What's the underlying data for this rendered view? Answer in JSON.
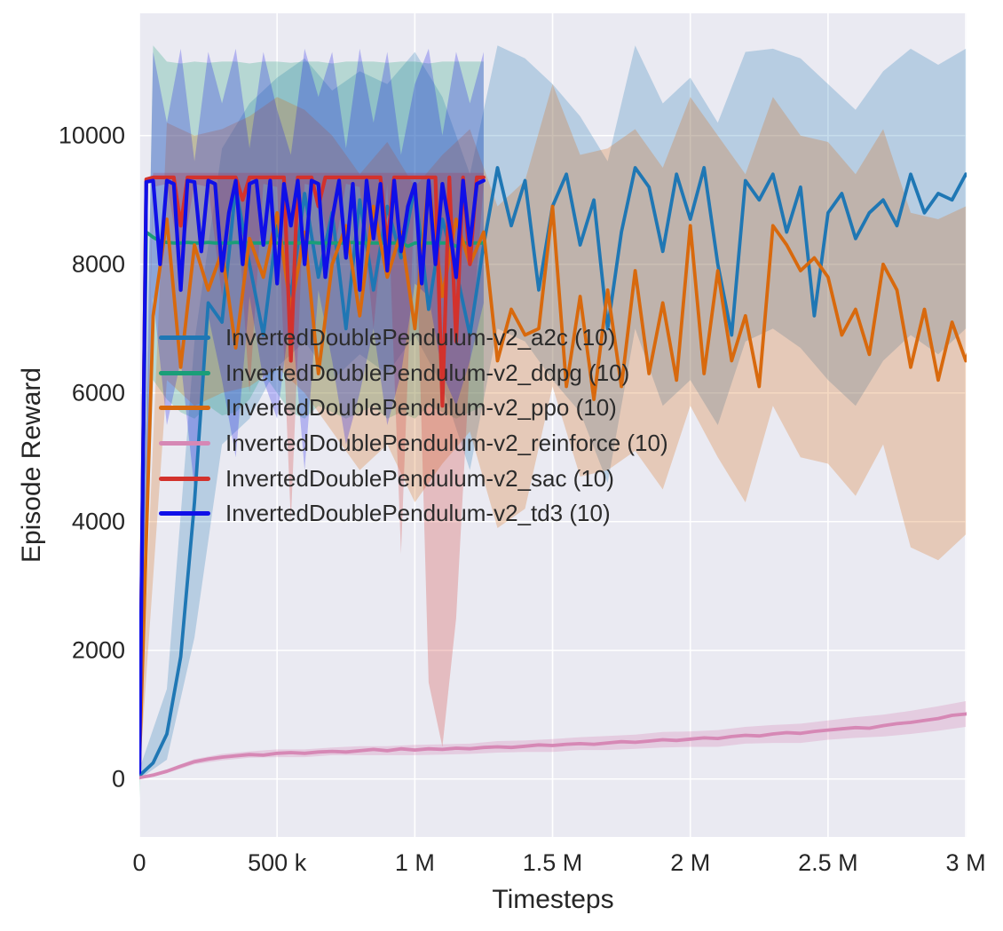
{
  "chart_data": {
    "type": "line",
    "title": "",
    "xlabel": "Timesteps",
    "ylabel": "Episode Reward",
    "xlim": [
      0,
      3003000
    ],
    "ylim": [
      -900,
      11900
    ],
    "grid": true,
    "plot_bg": "#eaeaf2",
    "grid_color": "#ffffff",
    "text_color": "#262626",
    "legend_position": "inside-upper-left",
    "x_ticks": [
      {
        "v": 0,
        "label": "0"
      },
      {
        "v": 500000,
        "label": "500 k"
      },
      {
        "v": 1000000,
        "label": "1 M"
      },
      {
        "v": 1500000,
        "label": "1.5 M"
      },
      {
        "v": 2000000,
        "label": "2 M"
      },
      {
        "v": 2500000,
        "label": "2.5 M"
      },
      {
        "v": 3000000,
        "label": "3 M"
      }
    ],
    "y_ticks": [
      {
        "v": 0,
        "label": "0"
      },
      {
        "v": 2000,
        "label": "2000"
      },
      {
        "v": 4000,
        "label": "4000"
      },
      {
        "v": 6000,
        "label": "6000"
      },
      {
        "v": 8000,
        "label": "8000"
      },
      {
        "v": 10000,
        "label": "10000"
      }
    ],
    "series": [
      {
        "id": "a2c",
        "name": "InvertedDoublePendulum-v2_a2c (10)",
        "color": "#1f77b4",
        "line_width": 3.8,
        "band_opacity": 0.25,
        "x0": 0,
        "dx": 50000,
        "y": [
          50,
          250,
          700,
          1900,
          4300,
          7400,
          7100,
          9200,
          8000,
          6900,
          8600,
          7500,
          9100,
          7800,
          8800,
          7000,
          9000,
          7600,
          8900,
          8100,
          9200,
          7300,
          8700,
          7900,
          6900,
          8300,
          9500,
          8600,
          9300,
          7600,
          8900,
          9400,
          8300,
          9000,
          7000,
          8500,
          9500,
          9200,
          8200,
          9400,
          8700,
          9500,
          8000,
          6900,
          9300,
          9000,
          9400,
          8500,
          9200,
          7200,
          8800,
          9100,
          8400,
          8800,
          9000,
          8600,
          9400,
          8800,
          9100,
          9000,
          9400,
          9200
        ],
        "band": {
          "x0": 0,
          "dx": 100000,
          "lo": [
            0,
            300,
            2200,
            5200,
            5600,
            6400,
            6800,
            6200,
            6600,
            6300,
            6900,
            6100,
            4800,
            7000,
            6800,
            6200,
            5700,
            4600,
            7000,
            5800,
            6200,
            5500,
            6800,
            7000,
            6700,
            6200,
            5800,
            6500,
            6900,
            6600,
            7000
          ],
          "hi": [
            150,
            1400,
            6800,
            9800,
            10500,
            10900,
            11200,
            10700,
            11000,
            10800,
            11300,
            10600,
            9400,
            11400,
            11200,
            10800,
            10300,
            9600,
            11400,
            10500,
            10900,
            10200,
            11300,
            11350,
            11200,
            10800,
            10400,
            11000,
            11350,
            11100,
            11350
          ]
        }
      },
      {
        "id": "ddpg",
        "name": "InvertedDoublePendulum-v2_ddpg (10)",
        "color": "#1a9e78",
        "line_width": 3.8,
        "band_opacity": 0.25,
        "x0": 0,
        "dx": 25000,
        "y": [
          120,
          8500,
          8420,
          8360,
          8340,
          8330,
          8330,
          8340,
          8330,
          8330,
          8340,
          8330,
          8330,
          8330,
          8340,
          8330,
          8330,
          8330,
          8330,
          8340,
          8330,
          8330,
          8330,
          8330,
          8330,
          8340,
          8330,
          8330,
          8330,
          8330,
          8330,
          8340,
          8330,
          8330,
          8330,
          8330,
          8330,
          8330,
          8340,
          8280,
          8330,
          8330,
          8330,
          8330,
          8330,
          8330,
          8280,
          8330,
          8330,
          8330,
          8330
        ],
        "band": {
          "x0": 0,
          "dx": 50000,
          "lo": [
            -300,
            6200,
            5900,
            5700,
            5600,
            5800,
            5650,
            5700,
            5900,
            6300,
            6000,
            5700,
            5600,
            5800,
            5700,
            5600,
            5700,
            5800,
            5600,
            5700,
            5600,
            5800,
            5700,
            5600,
            5700,
            5800
          ],
          "hi": [
            300,
            11400,
            11150,
            11120,
            11150,
            11130,
            11150,
            11150,
            11120,
            11150,
            11150,
            11130,
            11150,
            11150,
            11120,
            11150,
            11150,
            11150,
            11130,
            11150,
            11150,
            11120,
            11150,
            11150,
            11150,
            11150
          ]
        }
      },
      {
        "id": "ppo",
        "name": "InvertedDoublePendulum-v2_ppo (10)",
        "color": "#d8690d",
        "line_width": 3.8,
        "band_opacity": 0.25,
        "x0": 0,
        "dx": 50000,
        "y": [
          150,
          7200,
          8700,
          6400,
          8300,
          7600,
          8200,
          6700,
          8400,
          7800,
          8800,
          7300,
          8500,
          6300,
          8000,
          8600,
          7200,
          8900,
          7800,
          8500,
          7000,
          9300,
          7500,
          8700,
          8000,
          8500,
          6500,
          7300,
          6900,
          7000,
          8900,
          6100,
          7500,
          5900,
          7600,
          6100,
          7900,
          6300,
          7400,
          6200,
          8600,
          6300,
          7900,
          6500,
          7200,
          6100,
          8600,
          8300,
          7900,
          8100,
          7800,
          6900,
          7300,
          6600,
          8000,
          7600,
          6400,
          7300,
          6200,
          7100,
          6500,
          7200
        ],
        "band": {
          "x0": 0,
          "dx": 100000,
          "lo": [
            50,
            6200,
            5800,
            6000,
            6100,
            6400,
            6000,
            5400,
            4800,
            5200,
            4300,
            4900,
            5400,
            3900,
            4200,
            6100,
            4700,
            4800,
            5100,
            4500,
            5800,
            5000,
            4300,
            5800,
            5000,
            4900,
            4400,
            5200,
            3600,
            3400,
            3800
          ],
          "hi": [
            300,
            10200,
            10000,
            10100,
            10300,
            10600,
            10400,
            10000,
            9400,
            9900,
            9200,
            9700,
            10100,
            8900,
            9300,
            10800,
            9700,
            9800,
            10100,
            9500,
            10600,
            10000,
            9400,
            10600,
            10000,
            9900,
            9400,
            10100,
            8800,
            8700,
            8900
          ]
        }
      },
      {
        "id": "reinforce",
        "name": "InvertedDoublePendulum-v2_reinforce (10)",
        "color": "#d688b5",
        "line_width": 3.8,
        "band_opacity": 0.3,
        "x0": 0,
        "dx": 50000,
        "y": [
          20,
          60,
          120,
          200,
          270,
          310,
          340,
          360,
          380,
          370,
          400,
          410,
          400,
          420,
          430,
          420,
          440,
          460,
          440,
          470,
          450,
          470,
          460,
          480,
          470,
          490,
          500,
          490,
          510,
          530,
          520,
          540,
          550,
          540,
          560,
          580,
          570,
          590,
          610,
          600,
          620,
          640,
          630,
          660,
          680,
          670,
          700,
          720,
          710,
          740,
          760,
          780,
          800,
          790,
          830,
          860,
          880,
          910,
          940,
          990,
          1010,
          1050
        ],
        "band": {
          "x0": 0,
          "dx": 100000,
          "lo": [
            5,
            90,
            230,
            290,
            330,
            340,
            340,
            370,
            370,
            370,
            370,
            380,
            390,
            410,
            420,
            420,
            450,
            450,
            470,
            490,
            500,
            500,
            550,
            560,
            560,
            610,
            640,
            660,
            700,
            750,
            810
          ],
          "hi": [
            35,
            150,
            310,
            390,
            430,
            460,
            460,
            490,
            510,
            510,
            530,
            540,
            550,
            590,
            600,
            620,
            650,
            670,
            690,
            730,
            740,
            760,
            810,
            840,
            860,
            910,
            960,
            1000,
            1060,
            1130,
            1210
          ]
        }
      },
      {
        "id": "sac",
        "name": "InvertedDoublePendulum-v2_sac (10)",
        "color": "#d3322c",
        "line_width": 4.2,
        "band_opacity": 0.25,
        "x0": 0,
        "dx": 25000,
        "y": [
          150,
          9320,
          9350,
          9350,
          9350,
          9350,
          8600,
          9350,
          9350,
          9350,
          9350,
          9350,
          9350,
          9350,
          9350,
          9000,
          9350,
          9350,
          9350,
          9350,
          9350,
          9350,
          6500,
          9350,
          9350,
          9350,
          8900,
          9350,
          9350,
          9350,
          9350,
          9350,
          9350,
          9350,
          9350,
          9350,
          8300,
          9350,
          9350,
          9350,
          9350,
          9350,
          9350,
          9350,
          5800,
          9350,
          6800,
          9350,
          8000,
          9350,
          9350
        ],
        "band": {
          "x0": 0,
          "dx": 50000,
          "lo": [
            50,
            9200,
            9250,
            8000,
            9250,
            9200,
            7500,
            9250,
            6000,
            9250,
            9200,
            4000,
            9250,
            9200,
            8000,
            9250,
            9200,
            7000,
            9250,
            3500,
            9200,
            1500,
            500,
            2500,
            6500,
            9250
          ],
          "hi": [
            300,
            9420,
            9420,
            9420,
            9420,
            9420,
            9420,
            9420,
            9420,
            9420,
            9420,
            9420,
            9420,
            9420,
            9420,
            9420,
            9420,
            9420,
            9420,
            9420,
            9420,
            9420,
            9420,
            9420,
            9420,
            9420
          ]
        }
      },
      {
        "id": "td3",
        "name": "InvertedDoublePendulum-v2_td3 (10)",
        "color": "#0f0fe8",
        "line_width": 4.2,
        "band_opacity": 0.25,
        "x0": 0,
        "dx": 25000,
        "y": [
          100,
          9280,
          9300,
          8000,
          9300,
          9250,
          7600,
          9300,
          9280,
          8200,
          9300,
          9250,
          7900,
          8800,
          9300,
          8000,
          9250,
          9300,
          8300,
          9300,
          7700,
          9250,
          8600,
          9300,
          8000,
          9300,
          9250,
          7800,
          8700,
          9300,
          8100,
          9250,
          7600,
          9300,
          8400,
          9250,
          7900,
          9300,
          8200,
          8900,
          9250,
          7700,
          9300,
          8000,
          9250,
          8600,
          7800,
          9300,
          8300,
          9250,
          9300
        ],
        "band": {
          "x0": 0,
          "dx": 50000,
          "lo": [
            50,
            7500,
            5500,
            6500,
            4500,
            7200,
            6200,
            5000,
            7500,
            6200,
            5600,
            7300,
            4800,
            7600,
            6500,
            5200,
            6000,
            7000,
            5500,
            6300,
            7700,
            7500,
            6300,
            5800,
            6500,
            7400
          ],
          "hi": [
            200,
            11300,
            10200,
            11350,
            9600,
            11300,
            10500,
            11350,
            9800,
            11300,
            10400,
            9700,
            11350,
            10600,
            11300,
            9800,
            11350,
            10200,
            11300,
            9700,
            10800,
            11350,
            10000,
            11300,
            10500,
            11300
          ]
        }
      }
    ]
  }
}
